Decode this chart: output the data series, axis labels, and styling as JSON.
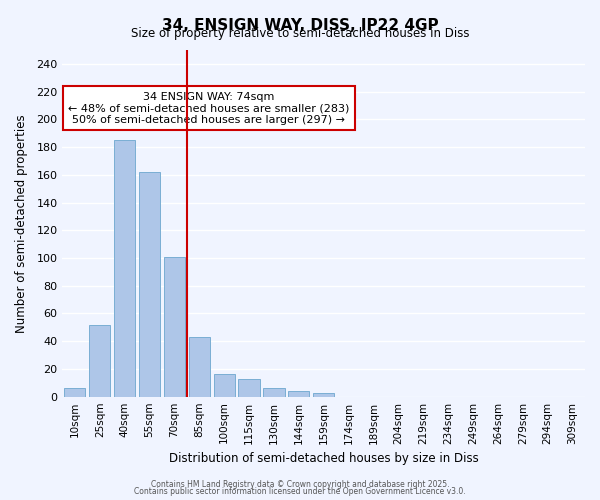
{
  "title": "34, ENSIGN WAY, DISS, IP22 4GP",
  "subtitle": "Size of property relative to semi-detached houses in Diss",
  "xlabel": "Distribution of semi-detached houses by size in Diss",
  "ylabel": "Number of semi-detached properties",
  "bar_labels": [
    "10sqm",
    "25sqm",
    "40sqm",
    "55sqm",
    "70sqm",
    "85sqm",
    "100sqm",
    "115sqm",
    "130sqm",
    "144sqm",
    "159sqm",
    "174sqm",
    "189sqm",
    "204sqm",
    "219sqm",
    "234sqm",
    "249sqm",
    "264sqm",
    "279sqm",
    "294sqm",
    "309sqm"
  ],
  "bar_values": [
    6,
    52,
    185,
    162,
    101,
    43,
    16,
    13,
    6,
    4,
    3,
    0,
    0,
    0,
    0,
    0,
    0,
    0,
    0,
    0,
    0
  ],
  "bar_color": "#aec6e8",
  "bar_edge_color": "#7aaed4",
  "property_line_x": 4,
  "property_line_color": "#cc0000",
  "annotation_text": "34 ENSIGN WAY: 74sqm\n← 48% of semi-detached houses are smaller (283)\n50% of semi-detached houses are larger (297) →",
  "annotation_box_color": "#ffffff",
  "annotation_box_edge": "#cc0000",
  "ylim": [
    0,
    250
  ],
  "yticks": [
    0,
    20,
    40,
    60,
    80,
    100,
    120,
    140,
    160,
    180,
    200,
    220,
    240
  ],
  "background_color": "#f0f4ff",
  "grid_color": "#ffffff",
  "footer_line1": "Contains HM Land Registry data © Crown copyright and database right 2025.",
  "footer_line2": "Contains public sector information licensed under the Open Government Licence v3.0."
}
